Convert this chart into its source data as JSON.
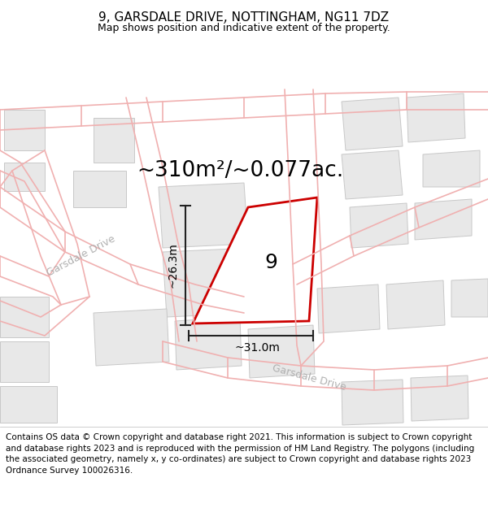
{
  "title": "9, GARSDALE DRIVE, NOTTINGHAM, NG11 7DZ",
  "subtitle": "Map shows position and indicative extent of the property.",
  "area_label": "~310m²/~0.077ac.",
  "property_number": "9",
  "dim_width": "~31.0m",
  "dim_height": "~26.3m",
  "footer": "Contains OS data © Crown copyright and database right 2021. This information is subject to Crown copyright and database rights 2023 and is reproduced with the permission of HM Land Registry. The polygons (including the associated geometry, namely x, y co-ordinates) are subject to Crown copyright and database rights 2023 Ordnance Survey 100026316.",
  "bg_color": "#ffffff",
  "road_line_color": "#f0b0b0",
  "building_face_color": "#e8e8e8",
  "building_edge_color": "#c8c8c8",
  "property_face_color": "#ffffff",
  "property_edge_color": "#cc0000",
  "dim_line_color": "#222222",
  "road_label_color": "#aaaaaa",
  "title_fontsize": 11,
  "subtitle_fontsize": 9,
  "area_fontsize": 19,
  "number_fontsize": 18,
  "dim_fontsize": 10,
  "footer_fontsize": 7.5,
  "road_lw": 1.2,
  "property_lw": 2.0,
  "building_lw": 0.7
}
